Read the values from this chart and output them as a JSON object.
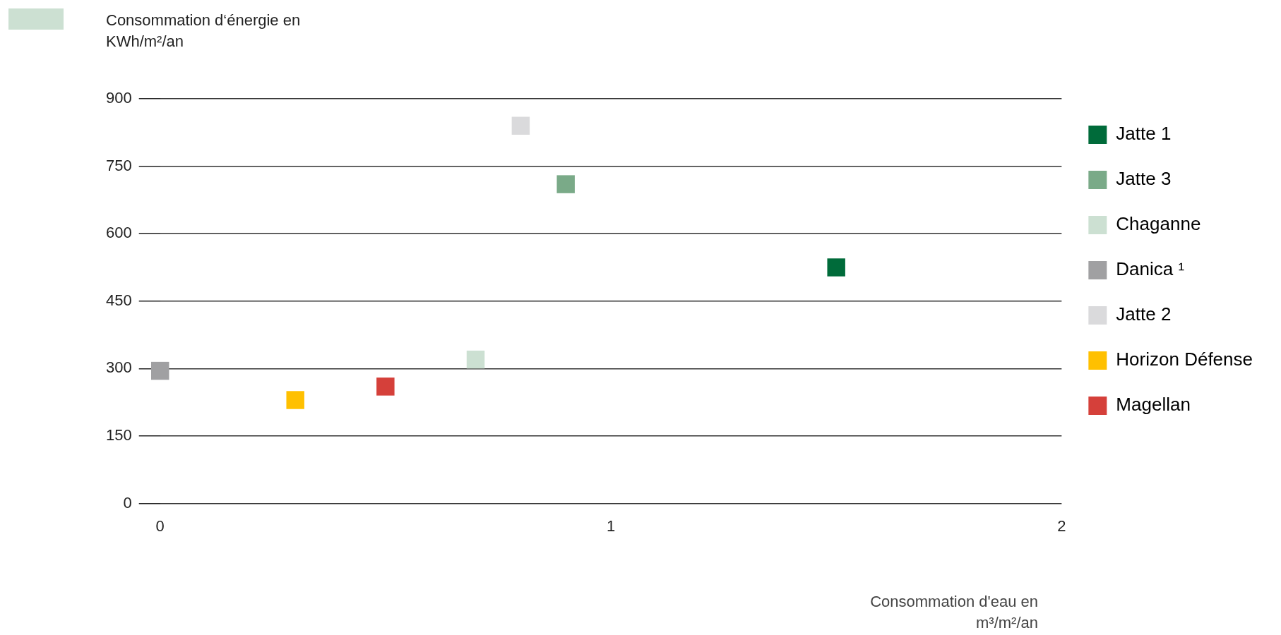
{
  "chart_data": {
    "type": "scatter",
    "xlabel": "Consommation  d'eau en m³/m²/an",
    "ylabel": "Consommation d‘énergie en KWh/m²/an",
    "series": [
      {
        "name": "Jatte 1",
        "color": "#006b3a",
        "x": [
          1.5
        ],
        "values": [
          525
        ]
      },
      {
        "name": "Jatte 3",
        "color": "#7aaa88",
        "x": [
          0.9
        ],
        "values": [
          710
        ]
      },
      {
        "name": "Chaganne",
        "color": "#cce0d2",
        "x": [
          0.7
        ],
        "values": [
          320
        ]
      },
      {
        "name": "Danica ¹",
        "color": "#a0a0a2",
        "x": [
          0
        ],
        "values": [
          295
        ]
      },
      {
        "name": "Jatte 2",
        "color": "#dadadc",
        "x": [
          0.8
        ],
        "values": [
          840
        ]
      },
      {
        "name": "Horizon Défense",
        "color": "#ffc000",
        "x": [
          0.3
        ],
        "values": [
          230
        ]
      },
      {
        "name": "Magellan",
        "color": "#d5403a",
        "x": [
          0.5
        ],
        "values": [
          260
        ]
      }
    ],
    "xlim": [
      0,
      2
    ],
    "xticks": [
      0,
      1,
      2
    ],
    "ylim": [
      0,
      900
    ],
    "yticks": [
      0,
      150,
      300,
      450,
      600,
      750,
      900
    ],
    "grid": "y",
    "legend": "right",
    "marker": "square"
  }
}
